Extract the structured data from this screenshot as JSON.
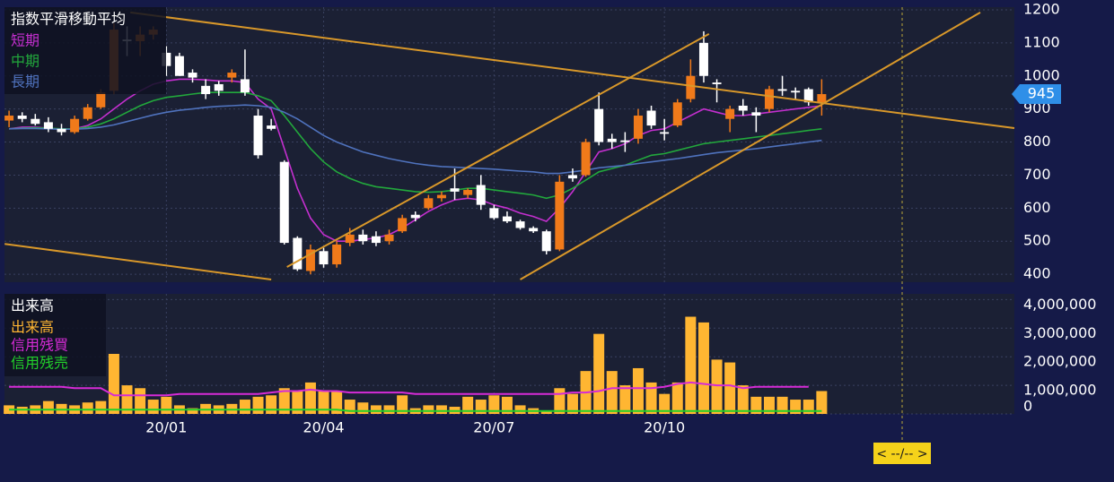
{
  "chart_data": {
    "type": "candlestick",
    "categories": [
      null,
      null,
      null,
      null,
      null,
      null,
      null,
      null,
      null,
      null,
      null,
      null,
      "20/01",
      null,
      null,
      null,
      null,
      null,
      null,
      null,
      null,
      null,
      null,
      null,
      "20/04",
      null,
      null,
      null,
      null,
      null,
      null,
      null,
      null,
      null,
      null,
      null,
      null,
      "20/07",
      null,
      null,
      null,
      null,
      null,
      null,
      null,
      null,
      null,
      null,
      null,
      null,
      "20/10",
      null,
      null,
      null,
      null,
      null,
      null,
      null,
      null,
      null,
      null,
      null,
      null
    ],
    "xlim": [
      -0.35,
      76.7
    ],
    "ylim": [
      376,
      1208
    ],
    "yticks": [
      400,
      500,
      600,
      700,
      800,
      900,
      1000,
      1100,
      1200
    ],
    "grid": true,
    "up_color": "#f07a1a",
    "down_color": "#ffffff",
    "current_price": 945,
    "ma_legend_title": "指数平滑移動平均",
    "open": [
      865,
      880,
      870,
      860,
      840,
      830,
      870,
      905,
      955,
      1110,
      1105,
      1125,
      1070,
      1060,
      1010,
      970,
      975,
      995,
      990,
      880,
      850,
      740,
      510,
      410,
      470,
      430,
      495,
      520,
      515,
      500,
      530,
      580,
      600,
      630,
      660,
      640,
      670,
      600,
      575,
      560,
      540,
      530,
      475,
      700,
      700,
      900,
      810,
      805,
      810,
      895,
      830,
      850,
      930,
      1100,
      980,
      870,
      910,
      890,
      900,
      960,
      955,
      960,
      920
    ],
    "high": [
      895,
      890,
      885,
      875,
      855,
      880,
      915,
      960,
      1160,
      1150,
      1150,
      1150,
      1090,
      1070,
      1020,
      990,
      985,
      1020,
      1080,
      900,
      870,
      745,
      515,
      490,
      480,
      500,
      540,
      535,
      530,
      535,
      580,
      590,
      640,
      650,
      720,
      660,
      700,
      610,
      590,
      565,
      545,
      535,
      700,
      720,
      810,
      950,
      825,
      830,
      900,
      910,
      870,
      930,
      1050,
      1135,
      990,
      910,
      930,
      905,
      970,
      1000,
      965,
      965,
      990
    ],
    "low": [
      845,
      860,
      850,
      830,
      820,
      825,
      865,
      900,
      945,
      1060,
      1060,
      1110,
      1000,
      1000,
      980,
      930,
      940,
      980,
      940,
      750,
      835,
      490,
      410,
      400,
      420,
      420,
      485,
      490,
      485,
      490,
      525,
      560,
      595,
      620,
      625,
      630,
      595,
      565,
      555,
      535,
      525,
      460,
      470,
      680,
      695,
      790,
      780,
      770,
      795,
      840,
      805,
      845,
      920,
      980,
      920,
      830,
      880,
      830,
      890,
      940,
      930,
      910,
      880
    ],
    "close": [
      880,
      870,
      855,
      840,
      830,
      870,
      905,
      950,
      1140,
      1105,
      1125,
      1140,
      1030,
      1000,
      995,
      945,
      955,
      1010,
      950,
      760,
      840,
      495,
      415,
      475,
      430,
      490,
      520,
      500,
      495,
      520,
      570,
      570,
      630,
      640,
      650,
      655,
      610,
      570,
      560,
      540,
      530,
      470,
      680,
      690,
      800,
      800,
      800,
      800,
      880,
      850,
      825,
      920,
      1000,
      1000,
      975,
      900,
      895,
      880,
      960,
      955,
      950,
      920,
      945
    ],
    "ma_series": [
      {
        "name": "短期",
        "color": "#c42fcf",
        "values": [
          840,
          845,
          845,
          842,
          838,
          840,
          850,
          870,
          900,
          930,
          955,
          975,
          985,
          990,
          990,
          988,
          985,
          985,
          980,
          930,
          900,
          780,
          660,
          570,
          520,
          500,
          500,
          505,
          510,
          520,
          540,
          565,
          590,
          610,
          625,
          630,
          625,
          610,
          600,
          585,
          575,
          560,
          600,
          650,
          710,
          770,
          780,
          795,
          820,
          835,
          840,
          860,
          880,
          900,
          890,
          880,
          880,
          885,
          890,
          895,
          900,
          905,
          910
        ]
      },
      {
        "name": "中期",
        "color": "#22a83c",
        "values": [
          840,
          842,
          843,
          842,
          840,
          840,
          845,
          855,
          870,
          890,
          910,
          925,
          935,
          940,
          945,
          950,
          950,
          950,
          950,
          940,
          925,
          880,
          830,
          780,
          740,
          710,
          690,
          675,
          665,
          660,
          655,
          650,
          648,
          650,
          655,
          660,
          660,
          655,
          650,
          645,
          640,
          630,
          640,
          660,
          685,
          710,
          720,
          730,
          745,
          760,
          765,
          775,
          785,
          795,
          800,
          805,
          810,
          815,
          820,
          825,
          830,
          835,
          840
        ]
      },
      {
        "name": "長期",
        "color": "#4f72bd",
        "values": [
          840,
          841,
          841,
          840,
          839,
          839,
          841,
          845,
          852,
          862,
          872,
          882,
          890,
          896,
          900,
          905,
          908,
          910,
          912,
          910,
          905,
          890,
          870,
          845,
          820,
          800,
          785,
          770,
          760,
          750,
          742,
          735,
          730,
          726,
          724,
          722,
          720,
          718,
          715,
          712,
          710,
          705,
          705,
          710,
          715,
          722,
          726,
          730,
          735,
          740,
          745,
          750,
          756,
          762,
          768,
          772,
          776,
          780,
          785,
          790,
          795,
          800,
          805
        ]
      }
    ],
    "trend_lines": [
      {
        "x": [
          9.25,
          76.7
        ],
        "y": [
          1192,
          842
        ]
      },
      {
        "x": [
          -0.34,
          20.0
        ],
        "y": [
          492,
          384
        ]
      },
      {
        "x": [
          21.2,
          53.4
        ],
        "y": [
          422,
          1127
        ]
      },
      {
        "x": [
          39.0,
          74.1
        ],
        "y": [
          384,
          1192
        ]
      }
    ],
    "trend_color": "#d9982a",
    "volume": {
      "title": "出来高",
      "ylim": [
        0,
        4200000
      ],
      "yticks": [
        0,
        {
          "value": 1000000,
          "label": "1,000,000"
        },
        {
          "value": 2000000,
          "label": "2,000,000"
        },
        {
          "value": 3000000,
          "label": "3,000,000"
        },
        {
          "value": 4000000,
          "label": "4,000,000"
        }
      ],
      "series": [
        {
          "name": "出来高",
          "color": "#ffb632",
          "values": [
            300000,
            250000,
            300000,
            450000,
            350000,
            300000,
            400000,
            450000,
            2100000,
            1000000,
            900000,
            500000,
            600000,
            300000,
            200000,
            350000,
            300000,
            350000,
            500000,
            600000,
            650000,
            900000,
            800000,
            1100000,
            800000,
            800000,
            500000,
            400000,
            300000,
            300000,
            650000,
            200000,
            300000,
            300000,
            250000,
            600000,
            500000,
            650000,
            600000,
            300000,
            200000,
            100000,
            900000,
            700000,
            1500000,
            2800000,
            1500000,
            1000000,
            1600000,
            1100000,
            700000,
            1100000,
            3400000,
            3200000,
            1900000,
            1800000,
            1000000,
            600000,
            600000,
            600000,
            500000,
            500000,
            800000
          ]
        },
        {
          "name": "信用残買",
          "color": "#d62bd6",
          "values": [
            950000,
            950000,
            950000,
            950000,
            950000,
            900000,
            900000,
            900000,
            650000,
            650000,
            650000,
            650000,
            650000,
            700000,
            700000,
            700000,
            700000,
            700000,
            700000,
            700000,
            750000,
            800000,
            800000,
            850000,
            800000,
            800000,
            750000,
            750000,
            750000,
            750000,
            750000,
            700000,
            700000,
            700000,
            700000,
            700000,
            700000,
            700000,
            700000,
            700000,
            700000,
            700000,
            700000,
            750000,
            750000,
            800000,
            900000,
            900000,
            900000,
            900000,
            950000,
            1050000,
            1100000,
            1050000,
            1000000,
            1000000,
            900000,
            950000,
            950000,
            950000,
            950000,
            950000,
            null
          ]
        },
        {
          "name": "信用残売",
          "color": "#22d02a",
          "values": [
            150000,
            150000,
            150000,
            150000,
            150000,
            150000,
            150000,
            150000,
            150000,
            150000,
            150000,
            150000,
            150000,
            150000,
            150000,
            150000,
            150000,
            150000,
            150000,
            150000,
            150000,
            150000,
            150000,
            150000,
            150000,
            150000,
            100000,
            100000,
            100000,
            100000,
            100000,
            100000,
            100000,
            100000,
            100000,
            100000,
            100000,
            100000,
            100000,
            100000,
            100000,
            100000,
            100000,
            100000,
            100000,
            100000,
            100000,
            100000,
            100000,
            100000,
            100000,
            100000,
            100000,
            100000,
            100000,
            100000,
            100000,
            100000,
            100000,
            100000,
            100000,
            100000,
            100000
          ]
        }
      ]
    },
    "cursor_label": "< --/-- >"
  }
}
